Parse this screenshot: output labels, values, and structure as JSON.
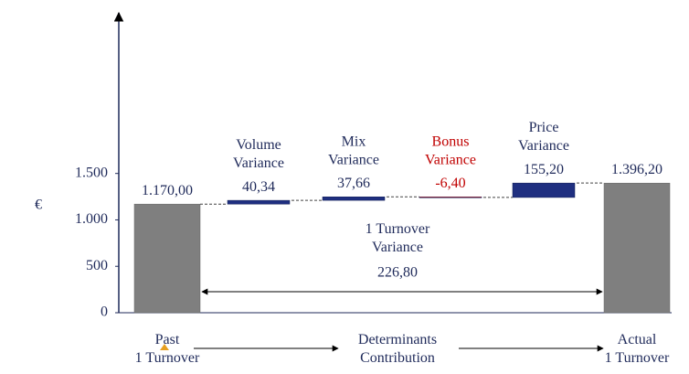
{
  "chart_data": {
    "type": "waterfall",
    "ylabel": "€",
    "categories": [
      "Past\n1 Turnover",
      "Volume\nVariance",
      "Mix\nVariance",
      "Bonus\nVariance",
      "Price\nVariance",
      "Actual\n1 Turnover"
    ],
    "measures": [
      "total",
      "relative",
      "relative",
      "relative",
      "relative",
      "total"
    ],
    "values": [
      1170,
      40.34,
      37.66,
      -6.4,
      155.2,
      1396.2
    ],
    "value_labels": [
      "1.170,00",
      "40,34",
      "37,66",
      "-6,40",
      "155,20",
      "1.396,20"
    ],
    "colors": [
      "#7f7f7f",
      "#1f2f80",
      "#1f2f80",
      "#e02020",
      "#1f2f80",
      "#7f7f7f"
    ],
    "label_colors": [
      "#1f2a5a",
      "#1f2a5a",
      "#1f2a5a",
      "#c00000",
      "#1f2a5a",
      "#1f2a5a"
    ],
    "middle_label": "Determinants\nContribution",
    "variance": {
      "label": "1 Turnover\nVariance",
      "value": 226.8,
      "value_label": "226,80"
    },
    "ylim": [
      0,
      3250
    ],
    "yticks": [
      0,
      500,
      {
        "value": 1000,
        "label": "1.000"
      },
      {
        "value": 1500,
        "label": "1.500"
      }
    ]
  }
}
